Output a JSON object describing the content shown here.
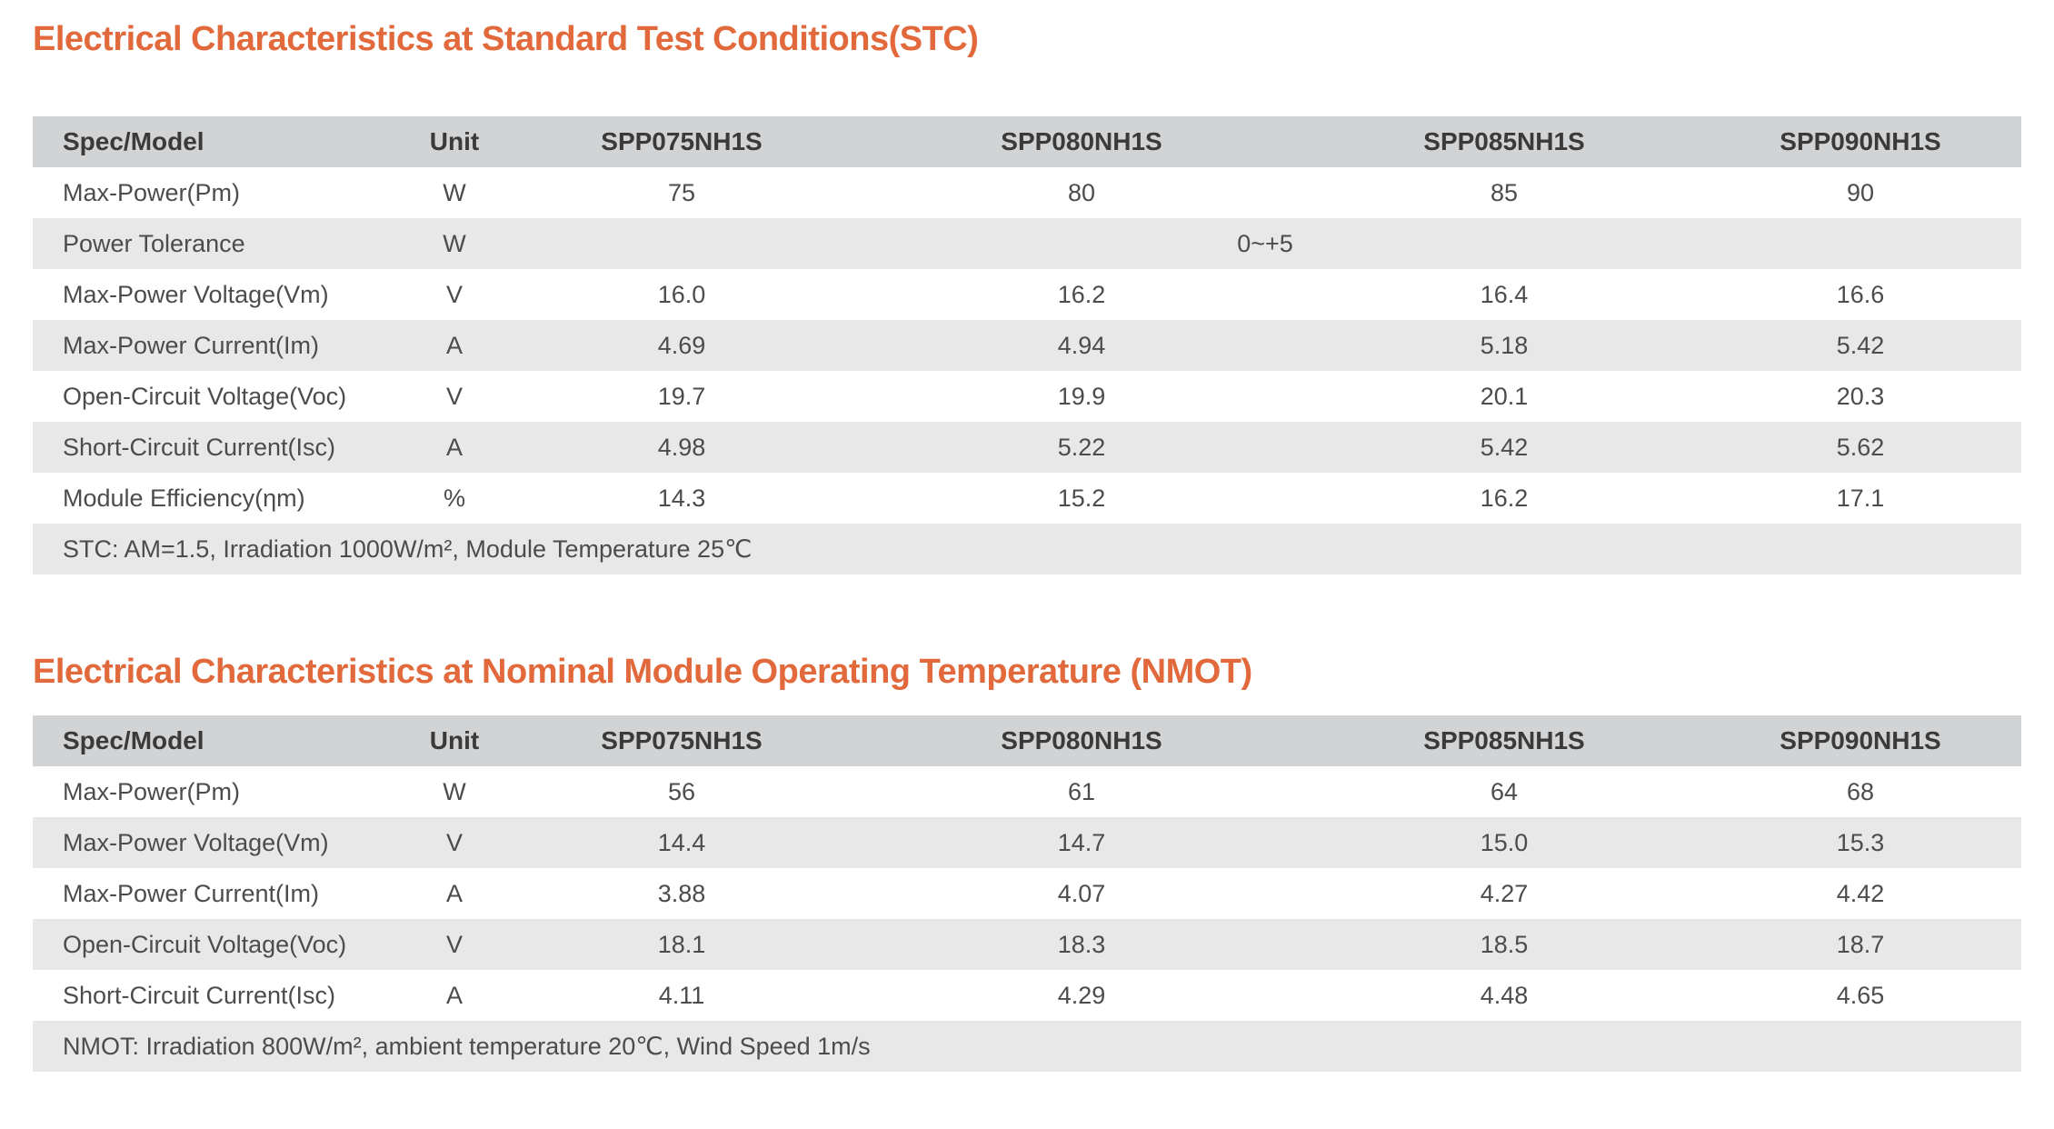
{
  "colors": {
    "accent_orange": "#E2693B",
    "header_bg": "#D2D3D4",
    "stripe_bg": "#E8E8E9",
    "header_text": "#3A3A3A",
    "body_text": "#4C4C4C"
  },
  "sections": [
    {
      "id": "stc",
      "title": "Electrical Characteristics at Standard Test Conditions(STC)",
      "columns": [
        "Spec/Model",
        "Unit",
        "SPP075NH1S",
        "SPP080NH1S",
        "SPP085NH1S",
        "SPP090NH1S"
      ],
      "rows": [
        {
          "spec": "Max-Power(Pm)",
          "unit": "W",
          "values": [
            "75",
            "80",
            "85",
            "90"
          ]
        },
        {
          "spec": "Power Tolerance",
          "unit": "W",
          "merged": "0~+5"
        },
        {
          "spec": "Max-Power Voltage(Vm)",
          "unit": "V",
          "values": [
            "16.0",
            "16.2",
            "16.4",
            "16.6"
          ]
        },
        {
          "spec": "Max-Power Current(Im)",
          "unit": "A",
          "values": [
            "4.69",
            "4.94",
            "5.18",
            "5.42"
          ]
        },
        {
          "spec": "Open-Circuit Voltage(Voc)",
          "unit": "V",
          "values": [
            "19.7",
            "19.9",
            "20.1",
            "20.3"
          ]
        },
        {
          "spec": "Short-Circuit Current(Isc)",
          "unit": "A",
          "values": [
            "4.98",
            "5.22",
            "5.42",
            "5.62"
          ]
        },
        {
          "spec": "Module Efficiency(ηm)",
          "unit": "%",
          "values": [
            "14.3",
            "15.2",
            "16.2",
            "17.1"
          ]
        }
      ],
      "note": "STC: AM=1.5, Irradiation 1000W/m², Module Temperature 25℃"
    },
    {
      "id": "nmot",
      "title": "Electrical Characteristics at Nominal Module Operating Temperature (NMOT)",
      "columns": [
        "Spec/Model",
        "Unit",
        "SPP075NH1S",
        "SPP080NH1S",
        "SPP085NH1S",
        "SPP090NH1S"
      ],
      "rows": [
        {
          "spec": "Max-Power(Pm)",
          "unit": "W",
          "values": [
            "56",
            "61",
            "64",
            "68"
          ]
        },
        {
          "spec": "Max-Power Voltage(Vm)",
          "unit": "V",
          "values": [
            "14.4",
            "14.7",
            "15.0",
            "15.3"
          ]
        },
        {
          "spec": "Max-Power Current(Im)",
          "unit": "A",
          "values": [
            "3.88",
            "4.07",
            "4.27",
            "4.42"
          ]
        },
        {
          "spec": "Open-Circuit Voltage(Voc)",
          "unit": "V",
          "values": [
            "18.1",
            "18.3",
            "18.5",
            "18.7"
          ]
        },
        {
          "spec": "Short-Circuit Current(Isc)",
          "unit": "A",
          "values": [
            "4.11",
            "4.29",
            "4.48",
            "4.65"
          ]
        }
      ],
      "note": "NMOT: Irradiation 800W/m², ambient temperature 20℃, Wind Speed 1m/s"
    }
  ]
}
